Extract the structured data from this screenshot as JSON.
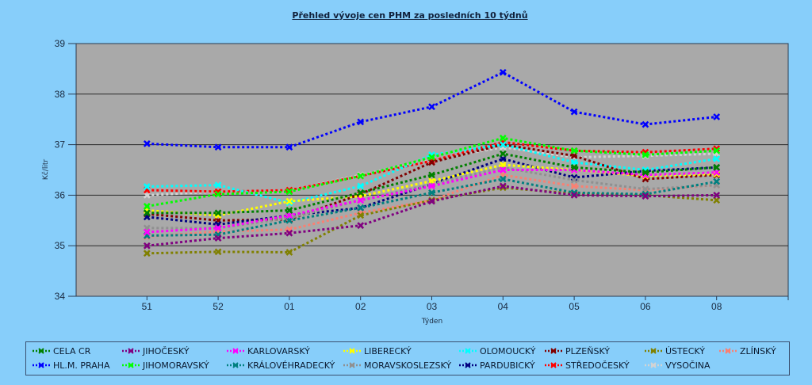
{
  "chart_data": {
    "type": "line",
    "title": "Přehled vývoje cen PHM za posledních 10 týdnů",
    "xlabel": "Týden",
    "ylabel": "Kč/litr",
    "ylim": [
      34,
      39
    ],
    "yticks": [
      "34",
      "35",
      "36",
      "37",
      "38",
      "39"
    ],
    "grid": true,
    "legend_position": "bottom",
    "categories": [
      "51",
      "52",
      "01",
      "02",
      "03",
      "04",
      "05",
      "06",
      "08"
    ],
    "series": [
      {
        "name": "CELA CR",
        "color": "#008000",
        "values": [
          35.65,
          35.65,
          35.7,
          36.05,
          36.4,
          36.82,
          36.55,
          36.45,
          36.55
        ]
      },
      {
        "name": "HL.M. PRAHA",
        "color": "#0000ff",
        "values": [
          37.02,
          36.95,
          36.95,
          37.45,
          37.75,
          38.43,
          37.65,
          37.4,
          37.55
        ]
      },
      {
        "name": "JIHOČESKÝ",
        "color": "#800080",
        "values": [
          35.0,
          35.15,
          35.25,
          35.4,
          35.88,
          36.18,
          36.0,
          35.98,
          36.0
        ]
      },
      {
        "name": "JIHOMORAVSKÝ",
        "color": "#00ff00",
        "values": [
          35.78,
          36.02,
          36.07,
          36.38,
          36.75,
          37.13,
          36.88,
          36.8,
          36.88
        ]
      },
      {
        "name": "KARLOVARSKÝ",
        "color": "#ff00ff",
        "values": [
          35.27,
          35.35,
          35.6,
          35.9,
          36.18,
          36.5,
          36.5,
          36.4,
          36.45
        ]
      },
      {
        "name": "KRÁLOVÉHRADECKÝ",
        "color": "#008080",
        "values": [
          35.2,
          35.22,
          35.5,
          35.75,
          36.05,
          36.32,
          36.05,
          36.02,
          36.27
        ]
      },
      {
        "name": "LIBERECKÝ",
        "color": "#ffff00",
        "values": [
          35.7,
          35.6,
          35.88,
          35.98,
          36.28,
          36.6,
          36.5,
          36.38,
          36.42
        ]
      },
      {
        "name": "MORAVSKOSLEZSKÝ",
        "color": "#909090",
        "values": [
          35.35,
          35.35,
          35.55,
          35.9,
          36.22,
          36.55,
          36.3,
          36.12,
          36.2
        ]
      },
      {
        "name": "OLOMOUCKÝ",
        "color": "#00ffff",
        "values": [
          36.17,
          36.2,
          35.85,
          36.18,
          36.8,
          37.0,
          36.65,
          36.5,
          36.72
        ]
      },
      {
        "name": "PARDUBICKÝ",
        "color": "#000080",
        "values": [
          35.57,
          35.42,
          35.6,
          35.75,
          36.22,
          36.72,
          36.35,
          36.48,
          36.55
        ]
      },
      {
        "name": "PLZEŇSKÝ",
        "color": "#800000",
        "values": [
          35.63,
          35.5,
          35.52,
          36.02,
          36.65,
          37.0,
          36.78,
          36.32,
          36.4
        ]
      },
      {
        "name": "STŘEDOČESKÝ",
        "color": "#ff0000",
        "values": [
          36.1,
          36.07,
          36.1,
          36.38,
          36.68,
          37.05,
          36.88,
          36.85,
          36.92
        ]
      },
      {
        "name": "ÚSTECKÝ",
        "color": "#808000",
        "values": [
          34.85,
          34.88,
          34.87,
          35.6,
          35.9,
          36.15,
          36.03,
          36.0,
          35.9
        ]
      },
      {
        "name": "VYSOČINA",
        "color": "#d3d3d3",
        "values": [
          36.0,
          36.07,
          36.1,
          36.4,
          36.7,
          36.95,
          36.75,
          36.78,
          36.82
        ]
      },
      {
        "name": "ZLÍNSKÝ",
        "color": "#fa8072",
        "values": [
          35.18,
          35.28,
          35.32,
          35.65,
          35.9,
          36.4,
          36.18,
          36.1,
          36.2
        ]
      }
    ]
  }
}
